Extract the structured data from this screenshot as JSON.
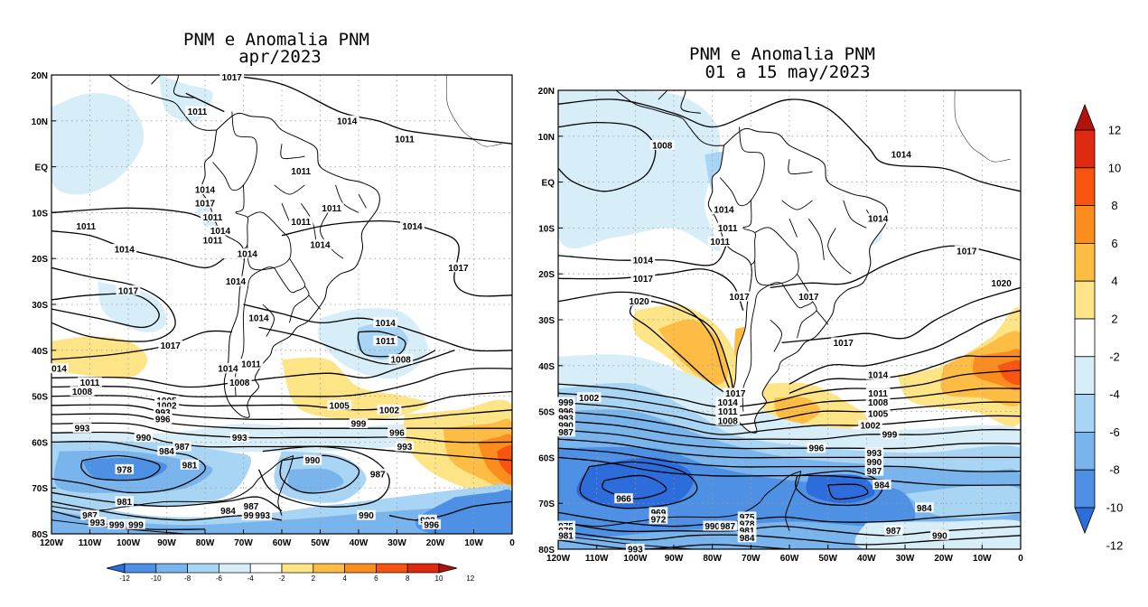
{
  "panels": [
    {
      "id": "left",
      "title_line1": "PNM e Anomalia PNM",
      "title_line2": "apr/2023",
      "lat_labels": [
        "20N",
        "10N",
        "EQ",
        "10S",
        "20S",
        "30S",
        "40S",
        "50S",
        "60S",
        "70S",
        "80S"
      ],
      "lon_labels": [
        "120W",
        "110W",
        "100W",
        "90W",
        "80W",
        "70W",
        "60W",
        "50W",
        "40W",
        "30W",
        "20W",
        "10W",
        "0"
      ],
      "contour_labels": [
        {
          "text": "1017",
          "lon": -73,
          "lat": 19.5
        },
        {
          "text": "1011",
          "lon": -82,
          "lat": 12
        },
        {
          "text": "1014",
          "lon": -43,
          "lat": 10
        },
        {
          "text": "1011",
          "lon": -28,
          "lat": 6
        },
        {
          "text": "1011",
          "lon": -55,
          "lat": -1
        },
        {
          "text": "1014",
          "lon": -80,
          "lat": -5
        },
        {
          "text": "1017",
          "lon": -80,
          "lat": -8
        },
        {
          "text": "1011",
          "lon": -78,
          "lat": -11
        },
        {
          "text": "1011",
          "lon": -55,
          "lat": -12
        },
        {
          "text": "1011",
          "lon": -47,
          "lat": -9
        },
        {
          "text": "1011",
          "lon": -111,
          "lat": -13
        },
        {
          "text": "1014",
          "lon": -76,
          "lat": -14
        },
        {
          "text": "1011",
          "lon": -78,
          "lat": -16
        },
        {
          "text": "1014",
          "lon": -26,
          "lat": -13
        },
        {
          "text": "1014",
          "lon": -101,
          "lat": -18
        },
        {
          "text": "1014",
          "lon": -50,
          "lat": -17
        },
        {
          "text": "1014",
          "lon": -69,
          "lat": -19
        },
        {
          "text": "1017",
          "lon": -14,
          "lat": -22
        },
        {
          "text": "1017",
          "lon": -100,
          "lat": -27
        },
        {
          "text": "1014",
          "lon": -72,
          "lat": -25
        },
        {
          "text": "1014",
          "lon": -66,
          "lat": -33
        },
        {
          "text": "1014",
          "lon": -33,
          "lat": -34
        },
        {
          "text": "1011",
          "lon": -33,
          "lat": -38
        },
        {
          "text": "1017",
          "lon": -89,
          "lat": -39
        },
        {
          "text": "1008",
          "lon": -29,
          "lat": -42
        },
        {
          "text": "014",
          "lon": -118,
          "lat": -44
        },
        {
          "text": "1014",
          "lon": -74,
          "lat": -44
        },
        {
          "text": "1011",
          "lon": -68,
          "lat": -43
        },
        {
          "text": "1011",
          "lon": -110,
          "lat": -47
        },
        {
          "text": "1008",
          "lon": -71,
          "lat": -47
        },
        {
          "text": "1008",
          "lon": -112,
          "lat": -49
        },
        {
          "text": "1005",
          "lon": -90,
          "lat": -51
        },
        {
          "text": "1002",
          "lon": -90,
          "lat": -52
        },
        {
          "text": "1005",
          "lon": -45,
          "lat": -52
        },
        {
          "text": "1002",
          "lon": -32,
          "lat": -53
        },
        {
          "text": "993",
          "lon": -91,
          "lat": -53.5
        },
        {
          "text": "996",
          "lon": -91,
          "lat": -55
        },
        {
          "text": "999",
          "lon": -40,
          "lat": -56
        },
        {
          "text": "993",
          "lon": -112,
          "lat": -57
        },
        {
          "text": "996",
          "lon": -30,
          "lat": -58
        },
        {
          "text": "990",
          "lon": -96,
          "lat": -59
        },
        {
          "text": "993",
          "lon": -71,
          "lat": -59
        },
        {
          "text": "987",
          "lon": -86,
          "lat": -61
        },
        {
          "text": "984",
          "lon": -90,
          "lat": -62
        },
        {
          "text": "993",
          "lon": -28,
          "lat": -61
        },
        {
          "text": "978",
          "lon": -101,
          "lat": -66
        },
        {
          "text": "981",
          "lon": -84,
          "lat": -65
        },
        {
          "text": "990",
          "lon": -52,
          "lat": -64
        },
        {
          "text": "987",
          "lon": -35,
          "lat": -67
        },
        {
          "text": "981",
          "lon": -101,
          "lat": -73
        },
        {
          "text": "984",
          "lon": -74,
          "lat": -75
        },
        {
          "text": "987",
          "lon": -68,
          "lat": -74
        },
        {
          "text": "990",
          "lon": -68,
          "lat": -76
        },
        {
          "text": "993",
          "lon": -65,
          "lat": -76
        },
        {
          "text": "990",
          "lon": -38,
          "lat": -76
        },
        {
          "text": "987",
          "lon": -110,
          "lat": -76
        },
        {
          "text": "993",
          "lon": -108,
          "lat": -77.5
        },
        {
          "text": "999",
          "lon": -103,
          "lat": -78
        },
        {
          "text": "999",
          "lon": -98,
          "lat": -78
        },
        {
          "text": "993",
          "lon": -22,
          "lat": -77
        },
        {
          "text": "996",
          "lon": -21,
          "lat": -78
        }
      ]
    },
    {
      "id": "right",
      "title_line1": "PNM e Anomalia PNM",
      "title_line2": "01 a 15 may/2023",
      "lat_labels": [
        "20N",
        "10N",
        "EQ",
        "10S",
        "20S",
        "30S",
        "40S",
        "50S",
        "60S",
        "70S",
        "80S"
      ],
      "lon_labels": [
        "120W",
        "110W",
        "100W",
        "90W",
        "80W",
        "70W",
        "60W",
        "50W",
        "40W",
        "30W",
        "20W",
        "10W",
        "0"
      ],
      "contour_labels": [
        {
          "text": "1008",
          "lon": -93,
          "lat": 8
        },
        {
          "text": "1014",
          "lon": -31,
          "lat": 6
        },
        {
          "text": "1014",
          "lon": -77,
          "lat": -6
        },
        {
          "text": "1014",
          "lon": -37,
          "lat": -8
        },
        {
          "text": "1011",
          "lon": -76,
          "lat": -10
        },
        {
          "text": "1011",
          "lon": -78,
          "lat": -13
        },
        {
          "text": "1017",
          "lon": -14,
          "lat": -15
        },
        {
          "text": "1014",
          "lon": -98,
          "lat": -17
        },
        {
          "text": "1017",
          "lon": -98,
          "lat": -21
        },
        {
          "text": "1020",
          "lon": -5,
          "lat": -22
        },
        {
          "text": "1017",
          "lon": -73,
          "lat": -25
        },
        {
          "text": "1017",
          "lon": -55,
          "lat": -25
        },
        {
          "text": "1020",
          "lon": -99,
          "lat": -26
        },
        {
          "text": "1017",
          "lon": -46,
          "lat": -35
        },
        {
          "text": "1014",
          "lon": -37,
          "lat": -42
        },
        {
          "text": "1011",
          "lon": -37,
          "lat": -46
        },
        {
          "text": "1017",
          "lon": -74,
          "lat": -46
        },
        {
          "text": "1014",
          "lon": -76,
          "lat": -48
        },
        {
          "text": "1008",
          "lon": -37,
          "lat": -48
        },
        {
          "text": "1011",
          "lon": -76,
          "lat": -50
        },
        {
          "text": "1005",
          "lon": -37,
          "lat": -50.5
        },
        {
          "text": "1008",
          "lon": -76,
          "lat": -52
        },
        {
          "text": "1002",
          "lon": -39,
          "lat": -53
        },
        {
          "text": "999",
          "lon": -34,
          "lat": -55
        },
        {
          "text": "1002",
          "lon": -112,
          "lat": -47
        },
        {
          "text": "999",
          "lon": -118,
          "lat": -48
        },
        {
          "text": "996",
          "lon": -118,
          "lat": -50
        },
        {
          "text": "993",
          "lon": -118,
          "lat": -51.5
        },
        {
          "text": "990",
          "lon": -118,
          "lat": -53
        },
        {
          "text": "987",
          "lon": -118,
          "lat": -54.5
        },
        {
          "text": "996",
          "lon": -53,
          "lat": -58
        },
        {
          "text": "993",
          "lon": -38,
          "lat": -59
        },
        {
          "text": "990",
          "lon": -38,
          "lat": -61
        },
        {
          "text": "987",
          "lon": -38,
          "lat": -63
        },
        {
          "text": "984",
          "lon": -36,
          "lat": -66
        },
        {
          "text": "966",
          "lon": -103,
          "lat": -69
        },
        {
          "text": "969",
          "lon": -94,
          "lat": -72
        },
        {
          "text": "972",
          "lon": -94,
          "lat": -73.5
        },
        {
          "text": "975",
          "lon": -71,
          "lat": -73
        },
        {
          "text": "978",
          "lon": -71,
          "lat": -74.5
        },
        {
          "text": "981",
          "lon": -71,
          "lat": -76
        },
        {
          "text": "984",
          "lon": -71,
          "lat": -77.5
        },
        {
          "text": "990",
          "lon": -80,
          "lat": -75
        },
        {
          "text": "987",
          "lon": -76,
          "lat": -75
        },
        {
          "text": "984",
          "lon": -25,
          "lat": -71
        },
        {
          "text": "987",
          "lon": -33,
          "lat": -76
        },
        {
          "text": "990",
          "lon": -21,
          "lat": -77
        },
        {
          "text": "975",
          "lon": -118,
          "lat": -75
        },
        {
          "text": "978",
          "lon": -118,
          "lat": -76
        },
        {
          "text": "981",
          "lon": -118,
          "lat": -77
        },
        {
          "text": "993",
          "lon": -100,
          "lat": -80
        }
      ]
    }
  ],
  "colorbar_vertical": {
    "labels": [
      "12",
      "10",
      "8",
      "6",
      "4",
      "2",
      "-2",
      "-4",
      "-6",
      "-8",
      "-10",
      "-12"
    ],
    "colors": [
      "#b3130f",
      "#dd2a10",
      "#f6540f",
      "#fb8c1e",
      "#fdbc44",
      "#fde487",
      "#ffffff",
      "#d7eef8",
      "#a8d5f3",
      "#79b4ec",
      "#4e90e3",
      "#2c6ddb"
    ]
  },
  "colorbar_horizontal": {
    "labels": [
      "-12",
      "-10",
      "-8",
      "-6",
      "-4",
      "-2",
      "2",
      "4",
      "6",
      "8",
      "10",
      "12"
    ],
    "colors": [
      "#2c6ddb",
      "#4e90e3",
      "#79b4ec",
      "#a8d5f3",
      "#d7eef8",
      "#ffffff",
      "#fde487",
      "#fdbc44",
      "#fb8c1e",
      "#f6540f",
      "#dd2a10",
      "#b3130f"
    ]
  },
  "anomaly_colors": {
    "blue_light": "#d7eef8",
    "blue_mid": "#a8d5f3",
    "blue_dark": "#79b4ec",
    "blue_deep": "#4e90e3",
    "blue_deepest": "#2c6ddb",
    "yellow": "#fde487",
    "orange_light": "#fdbc44",
    "orange": "#fb8c1e",
    "red": "#f6540f"
  }
}
